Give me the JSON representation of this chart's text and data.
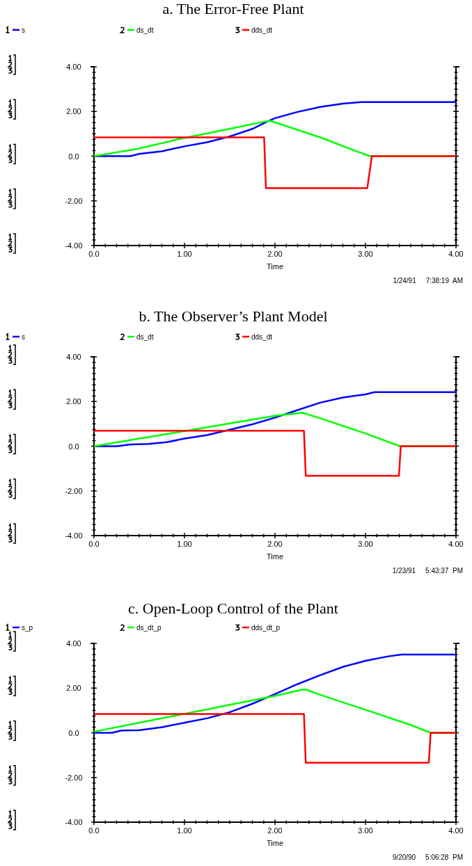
{
  "chart_data": [
    {
      "type": "line",
      "title": "a. The Error-Free Plant",
      "xlabel": "Time",
      "legend": "top",
      "grid": false,
      "xlim": [
        0,
        4
      ],
      "ylim": [
        -4,
        4
      ],
      "xticks": [
        {
          "value": 0,
          "label": "0.0"
        },
        {
          "value": 0.125,
          "label": null
        },
        {
          "value": 0.25,
          "label": null
        },
        {
          "value": 0.375,
          "label": null
        },
        {
          "value": 0.5,
          "label": null
        },
        {
          "value": 0.625,
          "label": null
        },
        {
          "value": 0.75,
          "label": null
        },
        {
          "value": 0.875,
          "label": null
        },
        {
          "value": 1,
          "label": "1.00"
        },
        {
          "value": 1.125,
          "label": null
        },
        {
          "value": 1.25,
          "label": null
        },
        {
          "value": 1.375,
          "label": null
        },
        {
          "value": 1.5,
          "label": null
        },
        {
          "value": 1.625,
          "label": null
        },
        {
          "value": 1.75,
          "label": null
        },
        {
          "value": 1.875,
          "label": null
        },
        {
          "value": 2,
          "label": "2.00"
        },
        {
          "value": 2.125,
          "label": null
        },
        {
          "value": 2.25,
          "label": null
        },
        {
          "value": 2.375,
          "label": null
        },
        {
          "value": 2.5,
          "label": null
        },
        {
          "value": 2.625,
          "label": null
        },
        {
          "value": 2.75,
          "label": null
        },
        {
          "value": 2.875,
          "label": null
        },
        {
          "value": 3,
          "label": "3.00"
        },
        {
          "value": 3.125,
          "label": null
        },
        {
          "value": 3.25,
          "label": null
        },
        {
          "value": 3.375,
          "label": null
        },
        {
          "value": 3.5,
          "label": null
        },
        {
          "value": 3.625,
          "label": null
        },
        {
          "value": 3.75,
          "label": null
        },
        {
          "value": 3.875,
          "label": null
        },
        {
          "value": 4,
          "label": "4.00"
        }
      ],
      "yticks": [
        {
          "value": -4,
          "label": "-4.00"
        },
        {
          "value": -3.75,
          "label": null
        },
        {
          "value": -3.5,
          "label": null
        },
        {
          "value": -3.25,
          "label": null
        },
        {
          "value": -3,
          "label": null
        },
        {
          "value": -2.75,
          "label": null
        },
        {
          "value": -2.5,
          "label": null
        },
        {
          "value": -2.25,
          "label": null
        },
        {
          "value": -2,
          "label": "-2.00"
        },
        {
          "value": -1.75,
          "label": null
        },
        {
          "value": -1.5,
          "label": null
        },
        {
          "value": -1.25,
          "label": null
        },
        {
          "value": -1,
          "label": null
        },
        {
          "value": -0.75,
          "label": null
        },
        {
          "value": -0.5,
          "label": null
        },
        {
          "value": -0.25,
          "label": null
        },
        {
          "value": 0,
          "label": "0.0"
        },
        {
          "value": 0.25,
          "label": null
        },
        {
          "value": 0.5,
          "label": null
        },
        {
          "value": 0.75,
          "label": null
        },
        {
          "value": 1,
          "label": null
        },
        {
          "value": 1.25,
          "label": null
        },
        {
          "value": 1.5,
          "label": null
        },
        {
          "value": 1.75,
          "label": null
        },
        {
          "value": 2,
          "label": "2.00"
        },
        {
          "value": 2.25,
          "label": null
        },
        {
          "value": 2.5,
          "label": null
        },
        {
          "value": 2.75,
          "label": null
        },
        {
          "value": 3,
          "label": null
        },
        {
          "value": 3.25,
          "label": null
        },
        {
          "value": 3.5,
          "label": null
        },
        {
          "value": 3.75,
          "label": null
        },
        {
          "value": 4,
          "label": "4.00"
        }
      ],
      "annotations": [
        "1/24/91     7:38:19  AM"
      ],
      "series": [
        {
          "name": "s",
          "color": "#0000ff",
          "x": [
            0,
            0.4,
            0.5,
            0.75,
            1,
            1.25,
            1.5,
            1.75,
            1.9,
            2,
            2.25,
            2.5,
            2.75,
            2.95,
            3.5,
            4
          ],
          "values": [
            0,
            0,
            0.1,
            0.22,
            0.44,
            0.62,
            0.88,
            1.22,
            1.52,
            1.7,
            1.98,
            2.2,
            2.35,
            2.42,
            2.42,
            2.42
          ]
        },
        {
          "name": "ds_dt",
          "color": "#00ff00",
          "x": [
            0,
            0.5,
            1,
            1.5,
            1.9,
            1.95,
            2.5,
            3,
            3.05,
            3.5,
            4
          ],
          "values": [
            0,
            0.34,
            0.82,
            1.22,
            1.56,
            1.58,
            0.84,
            0.07,
            0,
            0,
            0
          ]
        },
        {
          "name": "dds_dt",
          "color": "#ff0000",
          "x": [
            0,
            1.88,
            1.9,
            3.02,
            3.07,
            3.5,
            4
          ],
          "values": [
            0.84,
            0.84,
            -1.43,
            -1.43,
            0,
            0,
            0
          ]
        }
      ]
    },
    {
      "type": "line",
      "title": "b. The Observer’s Plant Model",
      "xlabel": "Time",
      "legend": "top",
      "grid": false,
      "xlim": [
        0,
        4
      ],
      "ylim": [
        -4,
        4
      ],
      "xticks": [
        {
          "value": 0,
          "label": "0.0"
        },
        {
          "value": 0.125,
          "label": null
        },
        {
          "value": 0.25,
          "label": null
        },
        {
          "value": 0.375,
          "label": null
        },
        {
          "value": 0.5,
          "label": null
        },
        {
          "value": 0.625,
          "label": null
        },
        {
          "value": 0.75,
          "label": null
        },
        {
          "value": 0.875,
          "label": null
        },
        {
          "value": 1,
          "label": "1.00"
        },
        {
          "value": 1.125,
          "label": null
        },
        {
          "value": 1.25,
          "label": null
        },
        {
          "value": 1.375,
          "label": null
        },
        {
          "value": 1.5,
          "label": null
        },
        {
          "value": 1.625,
          "label": null
        },
        {
          "value": 1.75,
          "label": null
        },
        {
          "value": 1.875,
          "label": null
        },
        {
          "value": 2,
          "label": "2.00"
        },
        {
          "value": 2.125,
          "label": null
        },
        {
          "value": 2.25,
          "label": null
        },
        {
          "value": 2.375,
          "label": null
        },
        {
          "value": 2.5,
          "label": null
        },
        {
          "value": 2.625,
          "label": null
        },
        {
          "value": 2.75,
          "label": null
        },
        {
          "value": 2.875,
          "label": null
        },
        {
          "value": 3,
          "label": "3.00"
        },
        {
          "value": 3.125,
          "label": null
        },
        {
          "value": 3.25,
          "label": null
        },
        {
          "value": 3.375,
          "label": null
        },
        {
          "value": 3.5,
          "label": null
        },
        {
          "value": 3.625,
          "label": null
        },
        {
          "value": 3.75,
          "label": null
        },
        {
          "value": 3.875,
          "label": null
        },
        {
          "value": 4,
          "label": "4.00"
        }
      ],
      "yticks": [
        {
          "value": -4,
          "label": "-4.00"
        },
        {
          "value": -3.75,
          "label": null
        },
        {
          "value": -3.5,
          "label": null
        },
        {
          "value": -3.25,
          "label": null
        },
        {
          "value": -3,
          "label": null
        },
        {
          "value": -2.75,
          "label": null
        },
        {
          "value": -2.5,
          "label": null
        },
        {
          "value": -2.25,
          "label": null
        },
        {
          "value": -2,
          "label": "-2.00"
        },
        {
          "value": -1.75,
          "label": null
        },
        {
          "value": -1.5,
          "label": null
        },
        {
          "value": -1.25,
          "label": null
        },
        {
          "value": -1,
          "label": null
        },
        {
          "value": -0.75,
          "label": null
        },
        {
          "value": -0.5,
          "label": null
        },
        {
          "value": -0.25,
          "label": null
        },
        {
          "value": 0,
          "label": "0.0"
        },
        {
          "value": 0.25,
          "label": null
        },
        {
          "value": 0.5,
          "label": null
        },
        {
          "value": 0.75,
          "label": null
        },
        {
          "value": 1,
          "label": null
        },
        {
          "value": 1.25,
          "label": null
        },
        {
          "value": 1.5,
          "label": null
        },
        {
          "value": 1.75,
          "label": null
        },
        {
          "value": 2,
          "label": "2.00"
        },
        {
          "value": 2.25,
          "label": null
        },
        {
          "value": 2.5,
          "label": null
        },
        {
          "value": 2.75,
          "label": null
        },
        {
          "value": 3,
          "label": null
        },
        {
          "value": 3.25,
          "label": null
        },
        {
          "value": 3.5,
          "label": null
        },
        {
          "value": 3.75,
          "label": null
        },
        {
          "value": 4,
          "label": "4.00"
        }
      ],
      "annotations": [
        "1/23/91     5:43:37  PM"
      ],
      "series": [
        {
          "name": "s",
          "color": "#0000ff",
          "x": [
            0,
            0.25,
            0.4,
            0.6,
            0.8,
            1,
            1.25,
            1.5,
            1.75,
            2,
            2.25,
            2.5,
            2.75,
            3,
            3.1,
            3.5,
            4
          ],
          "values": [
            0,
            0,
            0.08,
            0.1,
            0.18,
            0.34,
            0.5,
            0.74,
            0.98,
            1.28,
            1.62,
            1.95,
            2.18,
            2.32,
            2.42,
            2.42,
            2.42
          ]
        },
        {
          "name": "ds_dt",
          "color": "#00ff00",
          "x": [
            0,
            0.5,
            1,
            1.5,
            2,
            2.3,
            2.5,
            3,
            3.38,
            3.5,
            4
          ],
          "values": [
            0,
            0.34,
            0.68,
            1.02,
            1.36,
            1.5,
            1.25,
            0.57,
            0,
            0,
            0
          ]
        },
        {
          "name": "dds_dt",
          "color": "#ff0000",
          "x": [
            0,
            2.32,
            2.34,
            3.37,
            3.39,
            3.5,
            4
          ],
          "values": [
            0.69,
            0.69,
            -1.32,
            -1.32,
            0,
            0,
            0
          ]
        }
      ]
    },
    {
      "type": "line",
      "title": "c. Open-Loop Control of the Plant",
      "xlabel": "Time",
      "legend": "top",
      "grid": false,
      "xlim": [
        0,
        4
      ],
      "ylim": [
        -4,
        4
      ],
      "xticks": [
        {
          "value": 0,
          "label": "0.0"
        },
        {
          "value": 0.125,
          "label": null
        },
        {
          "value": 0.25,
          "label": null
        },
        {
          "value": 0.375,
          "label": null
        },
        {
          "value": 0.5,
          "label": null
        },
        {
          "value": 0.625,
          "label": null
        },
        {
          "value": 0.75,
          "label": null
        },
        {
          "value": 0.875,
          "label": null
        },
        {
          "value": 1,
          "label": "1.00"
        },
        {
          "value": 1.125,
          "label": null
        },
        {
          "value": 1.25,
          "label": null
        },
        {
          "value": 1.375,
          "label": null
        },
        {
          "value": 1.5,
          "label": null
        },
        {
          "value": 1.625,
          "label": null
        },
        {
          "value": 1.75,
          "label": null
        },
        {
          "value": 1.875,
          "label": null
        },
        {
          "value": 2,
          "label": "2.00"
        },
        {
          "value": 2.125,
          "label": null
        },
        {
          "value": 2.25,
          "label": null
        },
        {
          "value": 2.375,
          "label": null
        },
        {
          "value": 2.5,
          "label": null
        },
        {
          "value": 2.625,
          "label": null
        },
        {
          "value": 2.75,
          "label": null
        },
        {
          "value": 2.875,
          "label": null
        },
        {
          "value": 3,
          "label": "3.00"
        },
        {
          "value": 3.125,
          "label": null
        },
        {
          "value": 3.25,
          "label": null
        },
        {
          "value": 3.375,
          "label": null
        },
        {
          "value": 3.5,
          "label": null
        },
        {
          "value": 3.625,
          "label": null
        },
        {
          "value": 3.75,
          "label": null
        },
        {
          "value": 3.875,
          "label": null
        },
        {
          "value": 4,
          "label": "4.00"
        }
      ],
      "yticks": [
        {
          "value": -4,
          "label": "-4.00"
        },
        {
          "value": -3.75,
          "label": null
        },
        {
          "value": -3.5,
          "label": null
        },
        {
          "value": -3.25,
          "label": null
        },
        {
          "value": -3,
          "label": null
        },
        {
          "value": -2.75,
          "label": null
        },
        {
          "value": -2.5,
          "label": null
        },
        {
          "value": -2.25,
          "label": null
        },
        {
          "value": -2,
          "label": "-2.00"
        },
        {
          "value": -1.75,
          "label": null
        },
        {
          "value": -1.5,
          "label": null
        },
        {
          "value": -1.25,
          "label": null
        },
        {
          "value": -1,
          "label": null
        },
        {
          "value": -0.75,
          "label": null
        },
        {
          "value": -0.5,
          "label": null
        },
        {
          "value": -0.25,
          "label": null
        },
        {
          "value": 0,
          "label": "0.0"
        },
        {
          "value": 0.25,
          "label": null
        },
        {
          "value": 0.5,
          "label": null
        },
        {
          "value": 0.75,
          "label": null
        },
        {
          "value": 1,
          "label": null
        },
        {
          "value": 1.25,
          "label": null
        },
        {
          "value": 1.5,
          "label": null
        },
        {
          "value": 1.75,
          "label": null
        },
        {
          "value": 2,
          "label": "2.00"
        },
        {
          "value": 2.25,
          "label": null
        },
        {
          "value": 2.5,
          "label": null
        },
        {
          "value": 2.75,
          "label": null
        },
        {
          "value": 3,
          "label": null
        },
        {
          "value": 3.25,
          "label": null
        },
        {
          "value": 3.5,
          "label": null
        },
        {
          "value": 3.75,
          "label": null
        },
        {
          "value": 4,
          "label": "4.00"
        }
      ],
      "annotations": [
        "9/20/90     5:06:28  PM"
      ],
      "series": [
        {
          "name": "s_p",
          "color": "#0000ff",
          "x": [
            0,
            0.2,
            0.3,
            0.5,
            0.75,
            1,
            1.25,
            1.5,
            1.75,
            2,
            2.25,
            2.5,
            2.75,
            3,
            3.25,
            3.4,
            3.5,
            4
          ],
          "values": [
            0,
            0,
            0.1,
            0.12,
            0.25,
            0.45,
            0.65,
            0.92,
            1.3,
            1.73,
            2.18,
            2.58,
            2.95,
            3.22,
            3.42,
            3.5,
            3.5,
            3.5
          ]
        },
        {
          "name": "ds_dt_p",
          "color": "#00ff00",
          "x": [
            0,
            0.5,
            1,
            1.5,
            2,
            2.3,
            2.35,
            2.5,
            3,
            3.5,
            3.72,
            4
          ],
          "values": [
            0.05,
            0.45,
            0.85,
            1.25,
            1.65,
            1.93,
            1.93,
            1.7,
            1.03,
            0.35,
            0,
            0
          ]
        },
        {
          "name": "dds_dt_p",
          "color": "#ff0000",
          "x": [
            0,
            2.32,
            2.34,
            3.7,
            3.72,
            4
          ],
          "values": [
            0.84,
            0.84,
            -1.34,
            -1.34,
            0,
            0
          ]
        }
      ]
    }
  ]
}
